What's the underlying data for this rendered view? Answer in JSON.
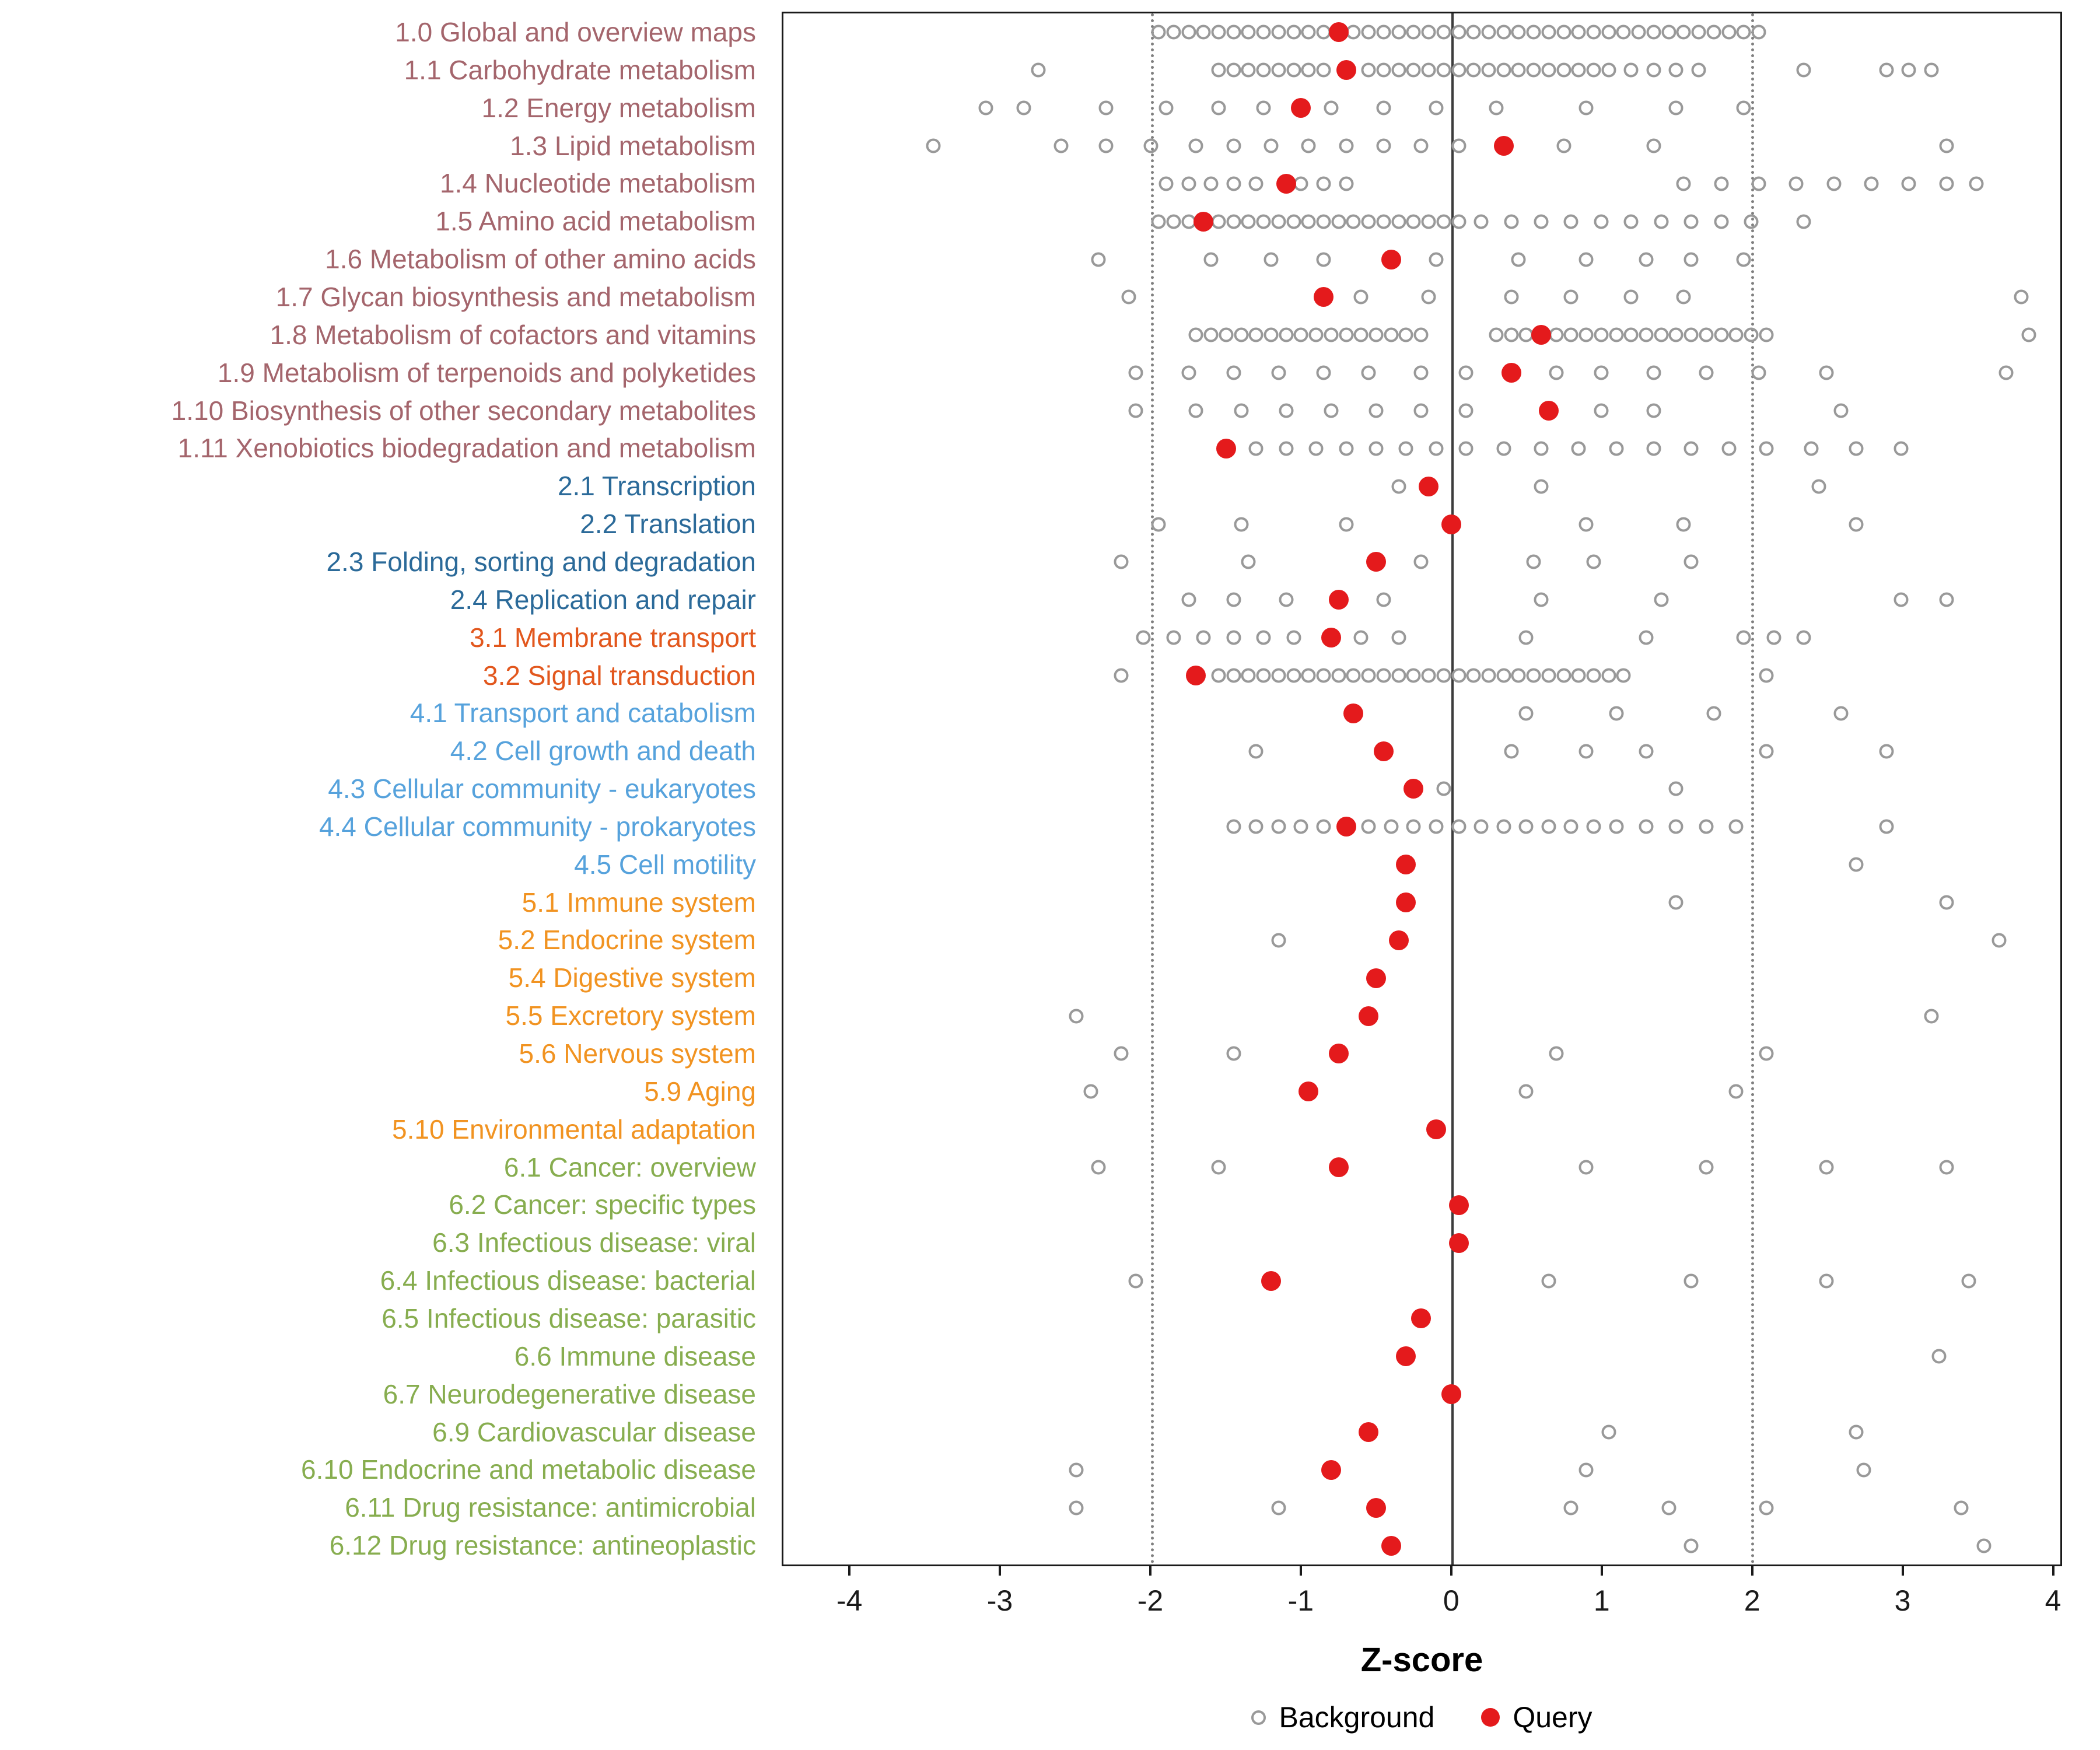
{
  "chart_data": {
    "type": "scatter",
    "title": "",
    "xlabel": "Z-score",
    "ylabel": "",
    "xlim": [
      -4.45,
      4.06
    ],
    "xticks": [
      -4,
      -3,
      -2,
      -1,
      0,
      1,
      2,
      3,
      4
    ],
    "grid": false,
    "legend_position": "bottom",
    "legend": {
      "background": "Background",
      "query": "Query"
    },
    "vlines": [
      {
        "z": -2,
        "style": "dotted"
      },
      {
        "z": 0,
        "style": "solid"
      },
      {
        "z": 2,
        "style": "dotted"
      }
    ],
    "colors": {
      "query": "#E41A1C",
      "background": "#999999",
      "zero_line": "#3C3C3C",
      "threshold_line": "#808080",
      "axis_text": "#1A1A1A",
      "panel_border": "#1A1A1A"
    },
    "group_colors": {
      "metabolism": "#A4656C",
      "genetic_information_processing": "#2B6A99",
      "environmental_information_processing": "#E2571D",
      "cellular_processes": "#56A2DC",
      "organismal_systems": "#F19321",
      "human_diseases": "#87AD4F"
    },
    "categories": [
      {
        "label": "1.0 Global and overview maps",
        "group": "metabolism",
        "query": -0.75,
        "background": [
          -1.95,
          -1.85,
          -1.75,
          -1.65,
          -1.55,
          -1.45,
          -1.35,
          -1.25,
          -1.15,
          -1.05,
          -0.95,
          -0.85,
          -0.65,
          -0.55,
          -0.45,
          -0.35,
          -0.25,
          -0.15,
          -0.05,
          0.05,
          0.15,
          0.25,
          0.35,
          0.45,
          0.55,
          0.65,
          0.75,
          0.85,
          0.95,
          1.05,
          1.15,
          1.25,
          1.35,
          1.45,
          1.55,
          1.65,
          1.75,
          1.85,
          1.95,
          2.05
        ]
      },
      {
        "label": "1.1 Carbohydrate metabolism",
        "group": "metabolism",
        "query": -0.7,
        "background": [
          -2.75,
          -1.55,
          -1.45,
          -1.35,
          -1.25,
          -1.15,
          -1.05,
          -0.95,
          -0.85,
          -0.55,
          -0.45,
          -0.35,
          -0.25,
          -0.15,
          -0.05,
          0.05,
          0.15,
          0.25,
          0.35,
          0.45,
          0.55,
          0.65,
          0.75,
          0.85,
          0.95,
          1.05,
          1.2,
          1.35,
          1.5,
          1.65,
          2.35,
          2.9,
          3.05,
          3.2
        ]
      },
      {
        "label": "1.2 Energy metabolism",
        "group": "metabolism",
        "query": -1.0,
        "background": [
          -3.1,
          -2.85,
          -2.3,
          -1.9,
          -1.55,
          -1.25,
          -0.8,
          -0.45,
          -0.1,
          0.3,
          0.9,
          1.5,
          1.95
        ]
      },
      {
        "label": "1.3 Lipid metabolism",
        "group": "metabolism",
        "query": 0.35,
        "background": [
          -3.45,
          -2.6,
          -2.3,
          -2.0,
          -1.7,
          -1.45,
          -1.2,
          -0.95,
          -0.7,
          -0.45,
          -0.2,
          0.05,
          0.75,
          1.35,
          3.3
        ]
      },
      {
        "label": "1.4 Nucleotide metabolism",
        "group": "metabolism",
        "query": -1.1,
        "background": [
          -1.9,
          -1.75,
          -1.6,
          -1.45,
          -1.3,
          -1.0,
          -0.85,
          -0.7,
          1.55,
          1.8,
          2.05,
          2.3,
          2.55,
          2.8,
          3.05,
          3.3,
          3.5
        ]
      },
      {
        "label": "1.5 Amino acid metabolism",
        "group": "metabolism",
        "query": -1.65,
        "background": [
          -1.95,
          -1.85,
          -1.75,
          -1.55,
          -1.45,
          -1.35,
          -1.25,
          -1.15,
          -1.05,
          -0.95,
          -0.85,
          -0.75,
          -0.65,
          -0.55,
          -0.45,
          -0.35,
          -0.25,
          -0.15,
          -0.05,
          0.05,
          0.2,
          0.4,
          0.6,
          0.8,
          1.0,
          1.2,
          1.4,
          1.6,
          1.8,
          2.0,
          2.35
        ]
      },
      {
        "label": "1.6 Metabolism of other amino acids",
        "group": "metabolism",
        "query": -0.4,
        "background": [
          -2.35,
          -1.6,
          -1.2,
          -0.85,
          -0.1,
          0.45,
          0.9,
          1.3,
          1.6,
          1.95
        ]
      },
      {
        "label": "1.7 Glycan biosynthesis and metabolism",
        "group": "metabolism",
        "query": -0.85,
        "background": [
          -2.15,
          -0.6,
          -0.15,
          0.4,
          0.8,
          1.2,
          1.55,
          3.8
        ]
      },
      {
        "label": "1.8 Metabolism of cofactors and vitamins",
        "group": "metabolism",
        "query": 0.6,
        "background": [
          -1.7,
          -1.6,
          -1.5,
          -1.4,
          -1.3,
          -1.2,
          -1.1,
          -1.0,
          -0.9,
          -0.8,
          -0.7,
          -0.6,
          -0.5,
          -0.4,
          -0.3,
          -0.2,
          0.3,
          0.4,
          0.5,
          0.7,
          0.8,
          0.9,
          1.0,
          1.1,
          1.2,
          1.3,
          1.4,
          1.5,
          1.6,
          1.7,
          1.8,
          1.9,
          2.0,
          2.1,
          3.85
        ]
      },
      {
        "label": "1.9 Metabolism of terpenoids and polyketides",
        "group": "metabolism",
        "query": 0.4,
        "background": [
          -2.1,
          -1.75,
          -1.45,
          -1.15,
          -0.85,
          -0.55,
          -0.2,
          0.1,
          0.7,
          1.0,
          1.35,
          1.7,
          2.05,
          2.5,
          3.7
        ]
      },
      {
        "label": "1.10 Biosynthesis of other secondary metabolites",
        "group": "metabolism",
        "query": 0.65,
        "background": [
          -2.1,
          -1.7,
          -1.4,
          -1.1,
          -0.8,
          -0.5,
          -0.2,
          0.1,
          1.0,
          1.35,
          2.6
        ]
      },
      {
        "label": "1.11 Xenobiotics biodegradation and metabolism",
        "group": "metabolism",
        "query": -1.5,
        "background": [
          -1.3,
          -1.1,
          -0.9,
          -0.7,
          -0.5,
          -0.3,
          -0.1,
          0.1,
          0.35,
          0.6,
          0.85,
          1.1,
          1.35,
          1.6,
          1.85,
          2.1,
          2.4,
          2.7,
          3.0
        ]
      },
      {
        "label": "2.1 Transcription",
        "group": "genetic_information_processing",
        "query": -0.15,
        "background": [
          -0.35,
          0.6,
          2.45
        ]
      },
      {
        "label": "2.2 Translation",
        "group": "genetic_information_processing",
        "query": 0.0,
        "background": [
          -1.95,
          -1.4,
          -0.7,
          0.9,
          1.55,
          2.7
        ]
      },
      {
        "label": "2.3 Folding, sorting and degradation",
        "group": "genetic_information_processing",
        "query": -0.5,
        "background": [
          -2.2,
          -1.35,
          -0.2,
          0.55,
          0.95,
          1.6
        ]
      },
      {
        "label": "2.4 Replication and repair",
        "group": "genetic_information_processing",
        "query": -0.75,
        "background": [
          -1.75,
          -1.45,
          -1.1,
          -0.45,
          0.6,
          1.4,
          3.0,
          3.3
        ]
      },
      {
        "label": "3.1 Membrane transport",
        "group": "environmental_information_processing",
        "query": -0.8,
        "background": [
          -2.05,
          -1.85,
          -1.65,
          -1.45,
          -1.25,
          -1.05,
          -0.6,
          -0.35,
          0.5,
          1.3,
          1.95,
          2.15,
          2.35
        ]
      },
      {
        "label": "3.2 Signal transduction",
        "group": "environmental_information_processing",
        "query": -1.7,
        "background": [
          -2.2,
          -1.55,
          -1.45,
          -1.35,
          -1.25,
          -1.15,
          -1.05,
          -0.95,
          -0.85,
          -0.75,
          -0.65,
          -0.55,
          -0.45,
          -0.35,
          -0.25,
          -0.15,
          -0.05,
          0.05,
          0.15,
          0.25,
          0.35,
          0.45,
          0.55,
          0.65,
          0.75,
          0.85,
          0.95,
          1.05,
          1.15,
          2.1
        ]
      },
      {
        "label": "4.1 Transport and catabolism",
        "group": "cellular_processes",
        "query": -0.65,
        "background": [
          0.5,
          1.1,
          1.75,
          2.6
        ]
      },
      {
        "label": "4.2 Cell growth and death",
        "group": "cellular_processes",
        "query": -0.45,
        "background": [
          -1.3,
          0.4,
          0.9,
          1.3,
          2.1,
          2.9
        ]
      },
      {
        "label": "4.3 Cellular community - eukaryotes",
        "group": "cellular_processes",
        "query": -0.25,
        "background": [
          -0.05,
          1.5
        ]
      },
      {
        "label": "4.4 Cellular community - prokaryotes",
        "group": "cellular_processes",
        "query": -0.7,
        "background": [
          -1.45,
          -1.3,
          -1.15,
          -1.0,
          -0.85,
          -0.55,
          -0.4,
          -0.25,
          -0.1,
          0.05,
          0.2,
          0.35,
          0.5,
          0.65,
          0.8,
          0.95,
          1.1,
          1.3,
          1.5,
          1.7,
          1.9,
          2.9
        ]
      },
      {
        "label": "4.5 Cell motility",
        "group": "cellular_processes",
        "query": -0.3,
        "background": [
          2.7
        ]
      },
      {
        "label": "5.1 Immune system",
        "group": "organismal_systems",
        "query": -0.3,
        "background": [
          1.5,
          3.3
        ]
      },
      {
        "label": "5.2 Endocrine system",
        "group": "organismal_systems",
        "query": -0.35,
        "background": [
          -1.15,
          3.65
        ]
      },
      {
        "label": "5.4 Digestive system",
        "group": "organismal_systems",
        "query": -0.5,
        "background": []
      },
      {
        "label": "5.5 Excretory system",
        "group": "organismal_systems",
        "query": -0.55,
        "background": [
          -2.5,
          3.2
        ]
      },
      {
        "label": "5.6 Nervous system",
        "group": "organismal_systems",
        "query": -0.75,
        "background": [
          -2.2,
          -1.45,
          0.7,
          2.1
        ]
      },
      {
        "label": "5.9 Aging",
        "group": "organismal_systems",
        "query": -0.95,
        "background": [
          -2.4,
          0.5,
          1.9
        ]
      },
      {
        "label": "5.10 Environmental adaptation",
        "group": "organismal_systems",
        "query": -0.1,
        "background": []
      },
      {
        "label": "6.1 Cancer: overview",
        "group": "human_diseases",
        "query": -0.75,
        "background": [
          -2.35,
          -1.55,
          0.9,
          1.7,
          2.5,
          3.3
        ]
      },
      {
        "label": "6.2 Cancer: specific types",
        "group": "human_diseases",
        "query": 0.05,
        "background": []
      },
      {
        "label": "6.3 Infectious disease: viral",
        "group": "human_diseases",
        "query": 0.05,
        "background": []
      },
      {
        "label": "6.4 Infectious disease: bacterial",
        "group": "human_diseases",
        "query": -1.2,
        "background": [
          -2.1,
          0.65,
          1.6,
          2.5,
          3.45
        ]
      },
      {
        "label": "6.5 Infectious disease: parasitic",
        "group": "human_diseases",
        "query": -0.2,
        "background": []
      },
      {
        "label": "6.6 Immune disease",
        "group": "human_diseases",
        "query": -0.3,
        "background": [
          3.25
        ]
      },
      {
        "label": "6.7 Neurodegenerative disease",
        "group": "human_diseases",
        "query": 0.0,
        "background": []
      },
      {
        "label": "6.9 Cardiovascular disease",
        "group": "human_diseases",
        "query": -0.55,
        "background": [
          1.05,
          2.7
        ]
      },
      {
        "label": "6.10 Endocrine and metabolic disease",
        "group": "human_diseases",
        "query": -0.8,
        "background": [
          -2.5,
          0.9,
          2.75
        ]
      },
      {
        "label": "6.11 Drug resistance: antimicrobial",
        "group": "human_diseases",
        "query": -0.5,
        "background": [
          -2.5,
          -1.15,
          0.8,
          1.45,
          2.1,
          3.4
        ]
      },
      {
        "label": "6.12 Drug resistance: antineoplastic",
        "group": "human_diseases",
        "query": -0.4,
        "background": [
          1.6,
          3.55
        ]
      }
    ]
  }
}
